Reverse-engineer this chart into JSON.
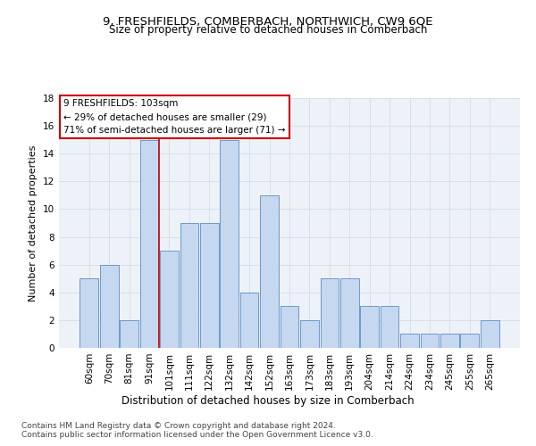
{
  "title": "9, FRESHFIELDS, COMBERBACH, NORTHWICH, CW9 6QE",
  "subtitle": "Size of property relative to detached houses in Comberbach",
  "xlabel": "Distribution of detached houses by size in Comberbach",
  "ylabel": "Number of detached properties",
  "categories": [
    "60sqm",
    "70sqm",
    "81sqm",
    "91sqm",
    "101sqm",
    "111sqm",
    "122sqm",
    "132sqm",
    "142sqm",
    "152sqm",
    "163sqm",
    "173sqm",
    "183sqm",
    "193sqm",
    "204sqm",
    "214sqm",
    "224sqm",
    "234sqm",
    "245sqm",
    "255sqm",
    "265sqm"
  ],
  "values": [
    5,
    6,
    2,
    15,
    7,
    9,
    9,
    15,
    4,
    11,
    3,
    2,
    5,
    5,
    3,
    3,
    1,
    1,
    1,
    1,
    2
  ],
  "bar_color": "#c5d8f0",
  "bar_edge_color": "#5b8ec4",
  "bar_linewidth": 0.6,
  "vline_x": 3.5,
  "vline_color": "#cc0000",
  "vline_linewidth": 1.2,
  "annotation_box_text": "9 FRESHFIELDS: 103sqm\n← 29% of detached houses are smaller (29)\n71% of semi-detached houses are larger (71) →",
  "ylim": [
    0,
    18
  ],
  "yticks": [
    0,
    2,
    4,
    6,
    8,
    10,
    12,
    14,
    16,
    18
  ],
  "grid_color": "#d8dfe8",
  "bg_color": "#edf2f9",
  "footnote1": "Contains HM Land Registry data © Crown copyright and database right 2024.",
  "footnote2": "Contains public sector information licensed under the Open Government Licence v3.0.",
  "title_fontsize": 9.5,
  "subtitle_fontsize": 8.5,
  "xlabel_fontsize": 8.5,
  "ylabel_fontsize": 8,
  "tick_fontsize": 7.5,
  "annot_fontsize": 7.5,
  "footnote_fontsize": 6.5
}
